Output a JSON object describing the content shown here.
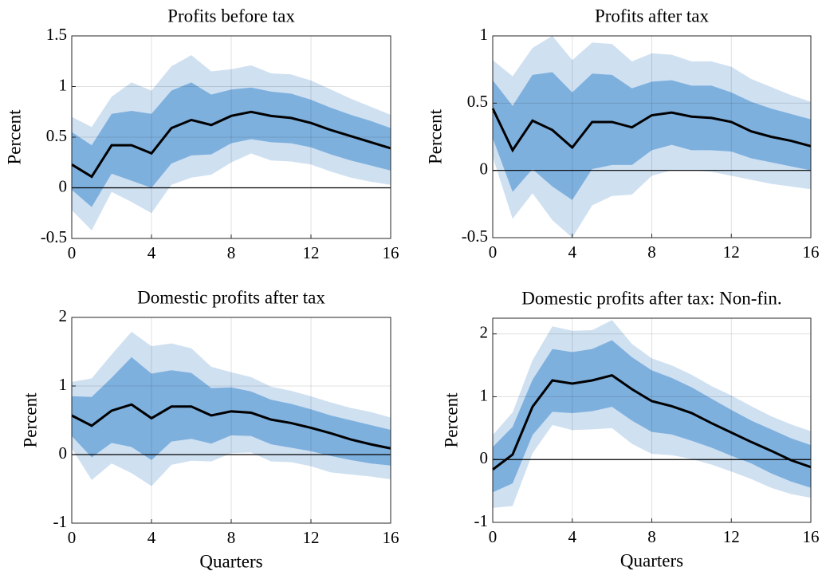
{
  "chart_data": [
    {
      "type": "line",
      "title": "Profits before tax",
      "ylabel": "Percent",
      "x": [
        0,
        1,
        2,
        3,
        4,
        5,
        6,
        7,
        8,
        9,
        10,
        11,
        12,
        13,
        14,
        15,
        16
      ],
      "xlim": [
        0,
        16
      ],
      "xticks": [
        0,
        4,
        8,
        12,
        16
      ],
      "ylim": [
        -0.5,
        1.5
      ],
      "yticks": [
        -0.5,
        0,
        0.5,
        1,
        1.5
      ],
      "grid": true,
      "zero_line": true,
      "bands": [
        {
          "color": "#cfe0f1",
          "upper": [
            0.7,
            0.6,
            0.9,
            1.04,
            0.96,
            1.2,
            1.31,
            1.15,
            1.17,
            1.21,
            1.13,
            1.12,
            1.06,
            0.97,
            0.88,
            0.8,
            0.72
          ],
          "lower": [
            -0.22,
            -0.42,
            -0.04,
            -0.14,
            -0.25,
            0.03,
            0.1,
            0.13,
            0.25,
            0.34,
            0.27,
            0.26,
            0.23,
            0.16,
            0.1,
            0.06,
            0.03
          ]
        },
        {
          "color": "#7eb0de",
          "upper": [
            0.55,
            0.42,
            0.73,
            0.76,
            0.73,
            0.96,
            1.04,
            0.92,
            0.97,
            0.99,
            0.95,
            0.93,
            0.87,
            0.79,
            0.72,
            0.66,
            0.59
          ],
          "lower": [
            -0.02,
            -0.19,
            0.14,
            0.07,
            0.0,
            0.24,
            0.32,
            0.33,
            0.44,
            0.48,
            0.45,
            0.44,
            0.4,
            0.33,
            0.27,
            0.22,
            0.17
          ]
        }
      ],
      "series": [
        {
          "color": "#000000",
          "values": [
            0.23,
            0.11,
            0.42,
            0.42,
            0.34,
            0.59,
            0.67,
            0.62,
            0.71,
            0.75,
            0.71,
            0.69,
            0.64,
            0.57,
            0.51,
            0.45,
            0.39
          ]
        }
      ]
    },
    {
      "type": "line",
      "title": "Profits after tax",
      "ylabel": "Percent",
      "x": [
        0,
        1,
        2,
        3,
        4,
        5,
        6,
        7,
        8,
        9,
        10,
        11,
        12,
        13,
        14,
        15,
        16
      ],
      "xlim": [
        0,
        16
      ],
      "xticks": [
        0,
        4,
        8,
        12,
        16
      ],
      "ylim": [
        -0.5,
        1
      ],
      "yticks": [
        -0.5,
        0,
        0.5,
        1
      ],
      "grid": true,
      "zero_line": true,
      "bands": [
        {
          "color": "#cfe0f1",
          "upper": [
            0.82,
            0.7,
            0.91,
            1.0,
            0.82,
            0.95,
            0.94,
            0.81,
            0.87,
            0.86,
            0.81,
            0.81,
            0.77,
            0.68,
            0.62,
            0.56,
            0.51
          ],
          "lower": [
            0.1,
            -0.36,
            -0.17,
            -0.37,
            -0.5,
            -0.26,
            -0.19,
            -0.18,
            -0.04,
            0.0,
            0.0,
            -0.01,
            -0.04,
            -0.07,
            -0.1,
            -0.12,
            -0.14
          ]
        },
        {
          "color": "#7eb0de",
          "upper": [
            0.67,
            0.48,
            0.71,
            0.73,
            0.58,
            0.72,
            0.71,
            0.61,
            0.66,
            0.67,
            0.63,
            0.63,
            0.58,
            0.51,
            0.46,
            0.42,
            0.38
          ],
          "lower": [
            0.24,
            -0.16,
            0.01,
            -0.12,
            -0.22,
            0.01,
            0.04,
            0.04,
            0.15,
            0.19,
            0.15,
            0.15,
            0.14,
            0.09,
            0.06,
            0.03,
            0.0
          ]
        }
      ],
      "series": [
        {
          "color": "#000000",
          "values": [
            0.46,
            0.15,
            0.37,
            0.3,
            0.17,
            0.36,
            0.36,
            0.32,
            0.41,
            0.43,
            0.4,
            0.39,
            0.36,
            0.29,
            0.25,
            0.22,
            0.18
          ]
        }
      ]
    },
    {
      "type": "line",
      "title": "Domestic profits after tax",
      "ylabel": "Percent",
      "xlabel": "Quarters",
      "x": [
        0,
        1,
        2,
        3,
        4,
        5,
        6,
        7,
        8,
        9,
        10,
        11,
        12,
        13,
        14,
        15,
        16
      ],
      "xlim": [
        0,
        16
      ],
      "xticks": [
        0,
        4,
        8,
        12,
        16
      ],
      "ylim": [
        -1,
        2
      ],
      "yticks": [
        -1,
        0,
        1,
        2
      ],
      "grid": true,
      "zero_line": true,
      "bands": [
        {
          "color": "#cfe0f1",
          "upper": [
            1.06,
            1.11,
            1.46,
            1.79,
            1.58,
            1.62,
            1.55,
            1.28,
            1.2,
            1.13,
            0.99,
            0.93,
            0.85,
            0.76,
            0.68,
            0.62,
            0.54
          ],
          "lower": [
            0.09,
            -0.37,
            -0.13,
            -0.27,
            -0.46,
            -0.15,
            -0.09,
            -0.1,
            0.02,
            0.03,
            -0.1,
            -0.11,
            -0.17,
            -0.26,
            -0.29,
            -0.32,
            -0.36
          ]
        },
        {
          "color": "#7eb0de",
          "upper": [
            0.85,
            0.84,
            1.12,
            1.42,
            1.18,
            1.23,
            1.19,
            0.97,
            0.98,
            0.92,
            0.8,
            0.74,
            0.66,
            0.57,
            0.5,
            0.43,
            0.36
          ],
          "lower": [
            0.27,
            -0.04,
            0.17,
            0.11,
            -0.08,
            0.19,
            0.23,
            0.16,
            0.28,
            0.27,
            0.15,
            0.1,
            0.05,
            -0.02,
            -0.08,
            -0.13,
            -0.16
          ]
        }
      ],
      "series": [
        {
          "color": "#000000",
          "values": [
            0.57,
            0.42,
            0.64,
            0.73,
            0.53,
            0.7,
            0.7,
            0.57,
            0.63,
            0.61,
            0.51,
            0.46,
            0.39,
            0.31,
            0.22,
            0.15,
            0.09
          ]
        }
      ]
    },
    {
      "type": "line",
      "title": "Domestic profits after tax: Non-fin.",
      "ylabel": "Percent",
      "xlabel": "Quarters",
      "x": [
        0,
        1,
        2,
        3,
        4,
        5,
        6,
        7,
        8,
        9,
        10,
        11,
        12,
        13,
        14,
        15,
        16
      ],
      "xlim": [
        0,
        16
      ],
      "xticks": [
        0,
        4,
        8,
        12,
        16
      ],
      "ylim": [
        -1,
        2.25
      ],
      "yticks": [
        -1,
        0,
        1,
        2
      ],
      "grid": true,
      "zero_line": true,
      "bands": [
        {
          "color": "#cfe0f1",
          "upper": [
            0.39,
            0.75,
            1.58,
            2.12,
            2.05,
            2.06,
            2.22,
            1.84,
            1.61,
            1.5,
            1.35,
            1.17,
            1.02,
            0.85,
            0.69,
            0.56,
            0.45
          ],
          "lower": [
            -0.77,
            -0.74,
            0.1,
            0.55,
            0.47,
            0.48,
            0.5,
            0.25,
            0.09,
            0.07,
            0.01,
            -0.08,
            -0.19,
            -0.31,
            -0.45,
            -0.55,
            -0.61
          ]
        },
        {
          "color": "#7eb0de",
          "upper": [
            0.2,
            0.52,
            1.27,
            1.76,
            1.71,
            1.76,
            1.9,
            1.63,
            1.42,
            1.3,
            1.15,
            0.97,
            0.79,
            0.62,
            0.48,
            0.34,
            0.23
          ],
          "lower": [
            -0.52,
            -0.38,
            0.39,
            0.76,
            0.74,
            0.77,
            0.84,
            0.62,
            0.44,
            0.4,
            0.3,
            0.19,
            0.06,
            -0.06,
            -0.22,
            -0.35,
            -0.45
          ]
        }
      ],
      "series": [
        {
          "color": "#000000",
          "values": [
            -0.16,
            0.08,
            0.84,
            1.26,
            1.21,
            1.26,
            1.34,
            1.12,
            0.93,
            0.85,
            0.74,
            0.58,
            0.43,
            0.28,
            0.14,
            -0.01,
            -0.12
          ]
        }
      ]
    }
  ]
}
